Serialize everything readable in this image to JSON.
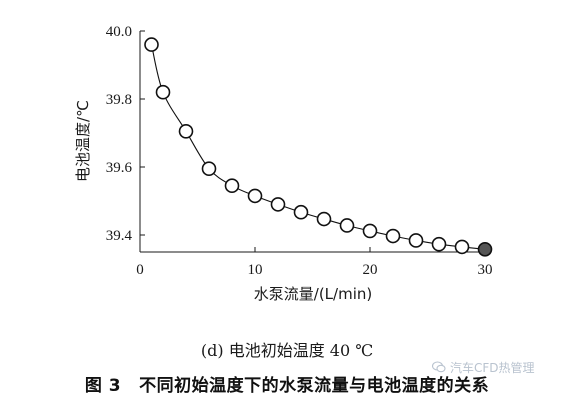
{
  "chart_data": {
    "type": "line",
    "xlabel": "水泵流量/(L/min)",
    "ylabel": "电池温度/℃",
    "xlim": [
      0,
      30
    ],
    "ylim": [
      39.35,
      40.0
    ],
    "xticks": [
      0,
      10,
      20,
      30
    ],
    "yticks": [
      39.4,
      39.6,
      39.8,
      40.0
    ],
    "ytick_labels": [
      "39.4",
      "39.6",
      "39.8",
      "40.0"
    ],
    "grid": false,
    "series": [
      {
        "x": [
          1,
          2,
          4,
          6,
          8,
          10,
          12,
          14,
          16,
          18,
          20,
          22,
          24,
          26,
          28,
          30
        ],
        "y": [
          39.96,
          39.82,
          39.705,
          39.595,
          39.545,
          39.515,
          39.49,
          39.467,
          39.447,
          39.428,
          39.412,
          39.397,
          39.384,
          39.373,
          39.365,
          39.358
        ],
        "marker": "open-circle",
        "highlight_last": true,
        "color": "#111111",
        "highlight_color": "#555555"
      }
    ]
  },
  "subcaption": "(d) 电池初始温度 40 ℃",
  "caption": {
    "fig_no": "图 3",
    "title": "不同初始温度下的水泵流量与电池温度的关系"
  },
  "watermark": {
    "text": "汽车CFD热管理",
    "icon": "wechat-icon"
  }
}
